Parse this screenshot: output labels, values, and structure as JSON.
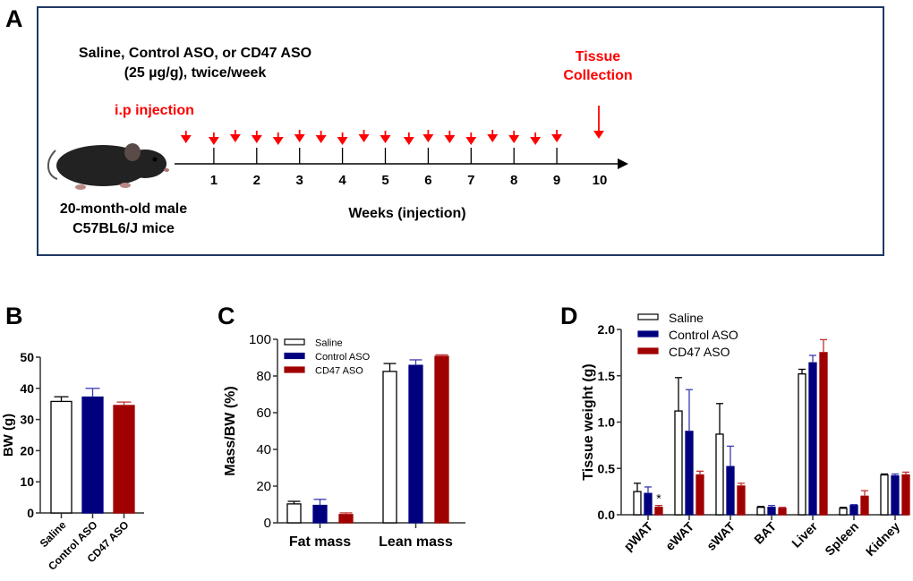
{
  "colors": {
    "saline": "#ffffff",
    "control_aso": "#00007f",
    "cd47_aso": "#a00000",
    "annotation_red": "#ff0000",
    "frame": "#1f3864"
  },
  "panel_a": {
    "label": "A",
    "treatment_line1": "Saline, Control ASO, or CD47 ASO",
    "treatment_line2": "(25 µg/g), twice/week",
    "injection_label": "i.p injection",
    "collection_line1": "Tissue",
    "collection_line2": "Collection",
    "mouse_line1": "20-month-old male",
    "mouse_line2": "C57BL6/J mice",
    "axis_label": "Weeks (injection)",
    "week_ticks": [
      "1",
      "2",
      "3",
      "4",
      "5",
      "6",
      "7",
      "8",
      "9",
      "10"
    ],
    "injection_weeks": [
      0.35,
      1,
      1.5,
      2,
      2.5,
      3,
      3.5,
      4,
      4.5,
      5,
      5.55,
      6,
      6.5,
      7,
      7.5,
      8,
      8.5,
      9
    ],
    "collection_week": 10,
    "mouse_icon": "mouse-icon"
  },
  "chart_data": [
    {
      "panel": "B",
      "type": "bar",
      "categories": [
        "Saline",
        "Control ASO",
        "CD47 ASO"
      ],
      "values": [
        35.8,
        37.2,
        34.5
      ],
      "errors": [
        1.5,
        2.8,
        1.1
      ],
      "ylabel": "BW (g)",
      "ylim": [
        0,
        50
      ],
      "yticks": [
        "0",
        "10",
        "20",
        "30",
        "40",
        "50"
      ],
      "grid": false
    },
    {
      "panel": "C",
      "type": "bar",
      "categories": [
        "Fat mass",
        "Lean mass"
      ],
      "series": [
        {
          "name": "Saline",
          "values": [
            10.3,
            82.5
          ],
          "errors": [
            1.4,
            4.3
          ]
        },
        {
          "name": "Control ASO",
          "values": [
            9.5,
            85.8
          ],
          "errors": [
            3.3,
            3.0
          ]
        },
        {
          "name": "CD47 ASO",
          "values": [
            4.5,
            90.7
          ],
          "errors": [
            0.9,
            0.8
          ]
        }
      ],
      "ylabel": "Mass/BW (%)",
      "ylim": [
        0,
        100
      ],
      "yticks": [
        "0",
        "20",
        "40",
        "60",
        "80",
        "100"
      ],
      "legend": "top-left",
      "grid": false
    },
    {
      "panel": "D",
      "type": "bar",
      "categories": [
        "pWAT",
        "eWAT",
        "sWAT",
        "BAT",
        "Liver",
        "Spleen",
        "Kidney"
      ],
      "series": [
        {
          "name": "Saline",
          "values": [
            0.25,
            1.12,
            0.87,
            0.08,
            1.52,
            0.07,
            0.43
          ],
          "errors": [
            0.09,
            0.36,
            0.33,
            0.01,
            0.05,
            0.01,
            0.01
          ]
        },
        {
          "name": "Control ASO",
          "values": [
            0.23,
            0.9,
            0.52,
            0.08,
            1.64,
            0.1,
            0.42
          ],
          "errors": [
            0.07,
            0.45,
            0.22,
            0.02,
            0.08,
            0.01,
            0.02
          ]
        },
        {
          "name": "CD47 ASO",
          "values": [
            0.08,
            0.43,
            0.31,
            0.07,
            1.75,
            0.2,
            0.43
          ],
          "errors": [
            0.02,
            0.04,
            0.03,
            0.01,
            0.14,
            0.06,
            0.03
          ]
        }
      ],
      "annotations": [
        {
          "category": "pWAT",
          "series": "CD47 ASO",
          "text": "*"
        }
      ],
      "ylabel": "Tissue weight (g)",
      "ylim": [
        0,
        2.0
      ],
      "yticks": [
        "0.0",
        "0.5",
        "1.0",
        "1.5",
        "2.0"
      ],
      "legend": "top-left",
      "grid": false
    }
  ],
  "panel_labels": {
    "b": "B",
    "c": "C",
    "d": "D"
  }
}
